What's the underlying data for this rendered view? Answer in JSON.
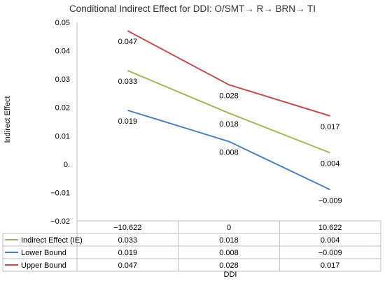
{
  "chart_data": {
    "type": "line",
    "title": "Conditional Indirect Effect for DDI: O/SMT→ R→ BRN→ TI",
    "xlabel": "DDI",
    "ylabel": "Indirect Effect",
    "categories": [
      "−10.622",
      "0",
      "10.622"
    ],
    "ylim": [
      -0.02,
      0.05
    ],
    "yticks": [
      {
        "value": 0.05,
        "label": "0.05"
      },
      {
        "value": 0.04,
        "label": "0.04"
      },
      {
        "value": 0.03,
        "label": "0.03"
      },
      {
        "value": 0.02,
        "label": "0.02"
      },
      {
        "value": 0.01,
        "label": "0.01"
      },
      {
        "value": 0,
        "label": "0."
      },
      {
        "value": -0.01,
        "label": "−0.01"
      },
      {
        "value": -0.02,
        "label": "−0.02"
      }
    ],
    "grid": false,
    "legend": "data-table",
    "series": [
      {
        "name": "Indirect Effect (IE)",
        "color": "#9bbb59",
        "values": [
          0.033,
          0.018,
          0.004
        ],
        "labels": [
          "0.033",
          "0.018",
          "0.004"
        ]
      },
      {
        "name": "Lower Bound",
        "color": "#4f81bd",
        "values": [
          0.019,
          0.008,
          -0.009
        ],
        "labels": [
          "0.019",
          "0.008",
          "−0.009"
        ]
      },
      {
        "name": "Upper Bound",
        "color": "#c0504d",
        "values": [
          0.047,
          0.028,
          0.017
        ],
        "labels": [
          "0.047",
          "0.028",
          "0.017"
        ]
      }
    ]
  }
}
